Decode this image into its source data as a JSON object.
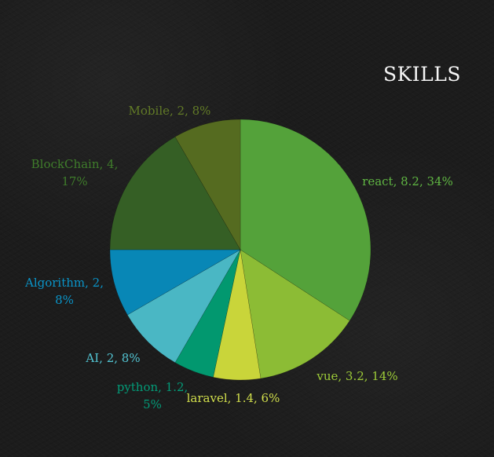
{
  "chart_data": {
    "type": "pie",
    "title": "SKILLS",
    "series": [
      {
        "name": "",
        "values": [
          8.2,
          3.2,
          1.4,
          1.2,
          2,
          2,
          4,
          2
        ]
      }
    ],
    "categories": [
      "react",
      "vue",
      "laravel",
      "python",
      "AI",
      "Algorithm",
      "BlockChain",
      "Mobile"
    ],
    "percentages": [
      34,
      14,
      6,
      5,
      8,
      8,
      17,
      8
    ],
    "labels": [
      [
        "react, 8.2, 34%"
      ],
      [
        "vue, 3.2, 14%"
      ],
      [
        "laravel, 1.4, 6%"
      ],
      [
        "python, 1.2,",
        "5%"
      ],
      [
        "AI, 2, 8%"
      ],
      [
        "Algorithm, 2,",
        "8%"
      ],
      [
        "BlockChain, 4,",
        "17%"
      ],
      [
        "Mobile, 2, 8%"
      ]
    ],
    "colors": [
      "#54a23a",
      "#8cbc35",
      "#c9d53a",
      "#02986f",
      "#4ab7c4",
      "#0887b6",
      "#355f25",
      "#556b20"
    ],
    "label_colors": [
      "#60b743",
      "#9dcb38",
      "#d2df4c",
      "#039b78",
      "#52c3d1",
      "#0a94c8",
      "#3f7d2b",
      "#627b27"
    ],
    "legend": "none",
    "grid": false
  }
}
